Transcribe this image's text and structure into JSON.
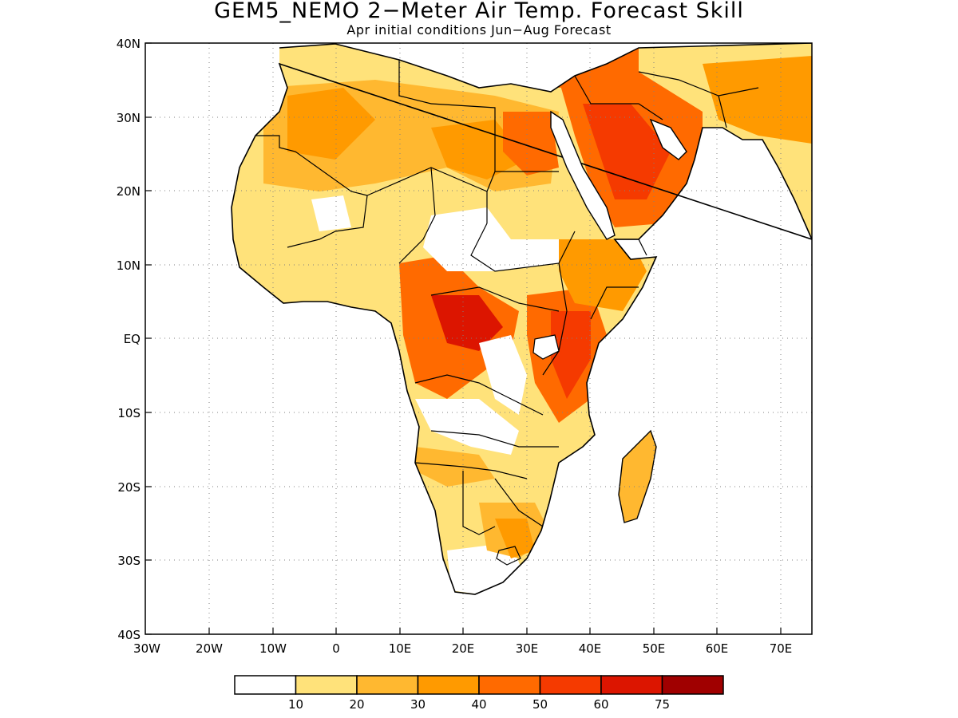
{
  "title": "GEM5_NEMO 2−Meter Air Temp. Forecast Skill",
  "subtitle": "Apr initial conditions  Jun−Aug Forecast",
  "map": {
    "lon_range": [
      -30,
      75
    ],
    "lat_range": [
      -40,
      40
    ],
    "lat_ticks": [
      "40N",
      "30N",
      "20N",
      "10N",
      "EQ",
      "10S",
      "20S",
      "30S",
      "40S"
    ],
    "lon_ticks": [
      "30W",
      "20W",
      "10W",
      "0",
      "10E",
      "20E",
      "30E",
      "40E",
      "50E",
      "60E",
      "70E"
    ],
    "gridlines": "dotted"
  },
  "legend": {
    "labels": [
      "10",
      "20",
      "30",
      "40",
      "50",
      "60",
      "75"
    ],
    "colors": [
      "#ffffff",
      "#ffe27a",
      "#ffb830",
      "#ff9a00",
      "#ff6a00",
      "#f53a00",
      "#dc1500",
      "#a00000"
    ]
  }
}
